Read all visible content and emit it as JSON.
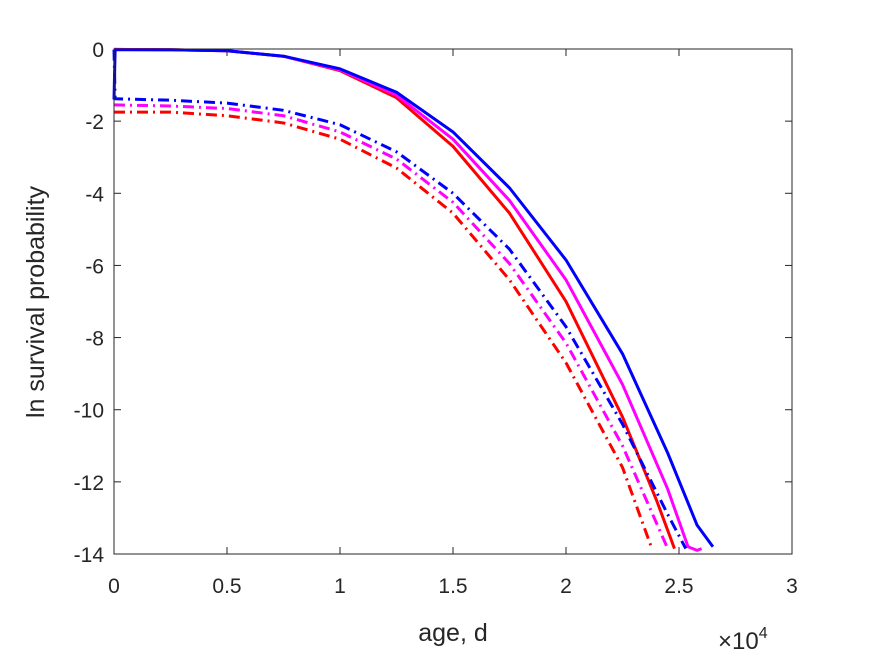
{
  "chart_data": {
    "type": "line",
    "title": "",
    "xlabel": "age, d",
    "ylabel": "ln survival probability",
    "x_exponent_label": {
      "base": "×10",
      "power": "4"
    },
    "xlim": [
      0,
      30000
    ],
    "ylim": [
      -14,
      0
    ],
    "xticks": [
      0,
      5000,
      10000,
      15000,
      20000,
      25000,
      30000
    ],
    "xtick_labels": [
      "0",
      "0.5",
      "1",
      "1.5",
      "2",
      "2.5",
      "3"
    ],
    "yticks": [
      0,
      -2,
      -4,
      -6,
      -8,
      -10,
      -12,
      -14
    ],
    "ytick_labels": [
      "0",
      "-2",
      "-4",
      "-6",
      "-8",
      "-10",
      "-12",
      "-14"
    ],
    "grid": false,
    "legend": "none",
    "series": [
      {
        "color": "#ff0000",
        "style": "solid",
        "points": [
          [
            0,
            -0.01
          ],
          [
            2500,
            -0.02
          ],
          [
            5000,
            -0.05
          ],
          [
            7500,
            -0.2
          ],
          [
            10000,
            -0.6
          ],
          [
            12500,
            -1.35
          ],
          [
            15000,
            -2.7
          ],
          [
            17500,
            -4.55
          ],
          [
            20000,
            -7.0
          ],
          [
            22500,
            -10.2
          ],
          [
            24000,
            -12.5
          ],
          [
            24800,
            -13.85
          ]
        ]
      },
      {
        "color": "#ff00ff",
        "style": "solid",
        "points": [
          [
            0,
            -0.01
          ],
          [
            2500,
            -0.02
          ],
          [
            5000,
            -0.05
          ],
          [
            7500,
            -0.2
          ],
          [
            10000,
            -0.58
          ],
          [
            12500,
            -1.28
          ],
          [
            15000,
            -2.5
          ],
          [
            17500,
            -4.2
          ],
          [
            20000,
            -6.4
          ],
          [
            22500,
            -9.3
          ],
          [
            24500,
            -12.2
          ],
          [
            25400,
            -13.8
          ],
          [
            25800,
            -13.9
          ],
          [
            26000,
            -13.85
          ]
        ]
      },
      {
        "color": "#0000ff",
        "style": "solid",
        "points": [
          [
            0,
            -1.4
          ],
          [
            50,
            -0.02
          ],
          [
            2500,
            -0.02
          ],
          [
            5000,
            -0.05
          ],
          [
            7500,
            -0.2
          ],
          [
            10000,
            -0.55
          ],
          [
            12500,
            -1.2
          ],
          [
            15000,
            -2.3
          ],
          [
            17500,
            -3.85
          ],
          [
            20000,
            -5.85
          ],
          [
            22500,
            -8.45
          ],
          [
            24500,
            -11.2
          ],
          [
            25800,
            -13.2
          ],
          [
            26500,
            -13.8
          ]
        ]
      },
      {
        "color": "#ff0000",
        "style": "dashdot",
        "points": [
          [
            0,
            -1.75
          ],
          [
            2500,
            -1.75
          ],
          [
            5000,
            -1.85
          ],
          [
            7500,
            -2.05
          ],
          [
            10000,
            -2.5
          ],
          [
            12500,
            -3.3
          ],
          [
            15000,
            -4.55
          ],
          [
            17500,
            -6.4
          ],
          [
            20000,
            -8.7
          ],
          [
            22500,
            -11.6
          ],
          [
            23800,
            -13.85
          ]
        ]
      },
      {
        "color": "#ff00ff",
        "style": "dashdot",
        "points": [
          [
            0,
            -1.55
          ],
          [
            2500,
            -1.58
          ],
          [
            5000,
            -1.65
          ],
          [
            7500,
            -1.85
          ],
          [
            10000,
            -2.3
          ],
          [
            12500,
            -3.05
          ],
          [
            15000,
            -4.25
          ],
          [
            17500,
            -5.95
          ],
          [
            20000,
            -8.15
          ],
          [
            22500,
            -11.0
          ],
          [
            24500,
            -13.85
          ]
        ]
      },
      {
        "color": "#0000ff",
        "style": "dashdot",
        "points": [
          [
            0,
            -0.02
          ],
          [
            50,
            -1.38
          ],
          [
            2500,
            -1.42
          ],
          [
            5000,
            -1.5
          ],
          [
            7500,
            -1.7
          ],
          [
            10000,
            -2.1
          ],
          [
            12500,
            -2.85
          ],
          [
            15000,
            -4.0
          ],
          [
            17500,
            -5.55
          ],
          [
            20000,
            -7.7
          ],
          [
            22500,
            -10.4
          ],
          [
            24500,
            -12.9
          ],
          [
            25300,
            -13.85
          ]
        ]
      }
    ]
  }
}
